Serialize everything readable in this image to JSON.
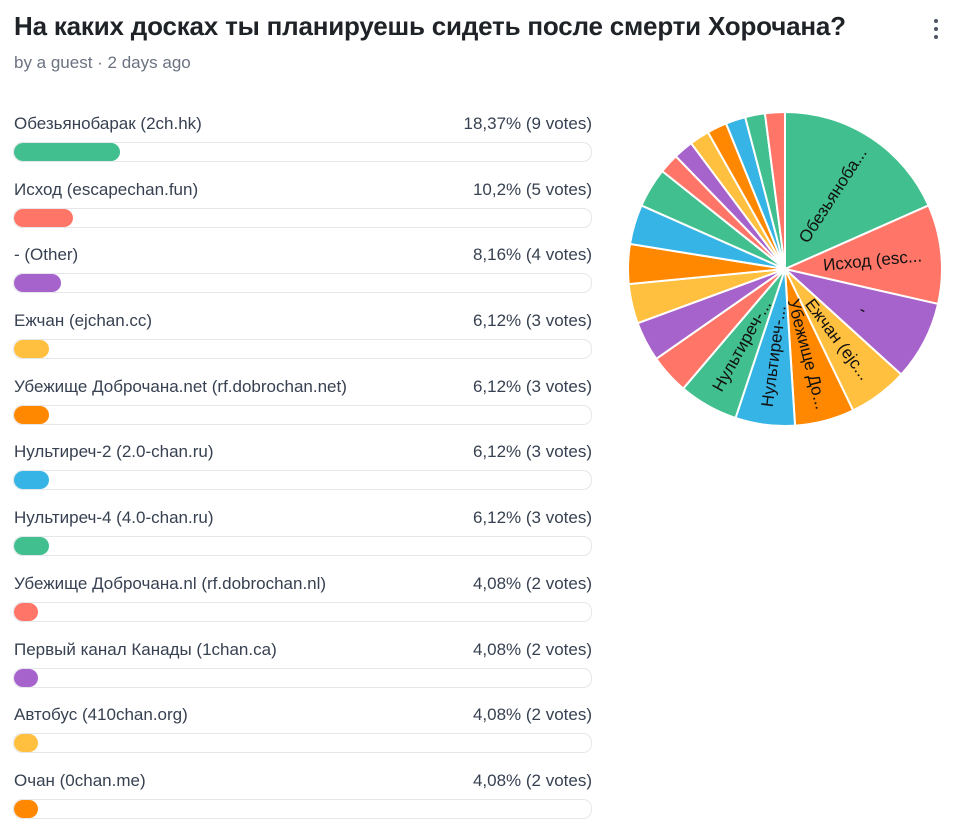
{
  "poll": {
    "title": "На каких досках ты планируешь сидеть после смерти Хорочана?",
    "meta": "by a guest · 2 days ago",
    "more_icon": "more-vertical-icon"
  },
  "colors": [
    "#41BF8E",
    "#FF7567",
    "#A663CC",
    "#FFBF3F",
    "#FF8800",
    "#36B4E5"
  ],
  "chart_data": {
    "type": "pie",
    "title": "На каких досках ты планируешь сидеть после смерти Хорочана?",
    "slices": [
      {
        "label": "Обезьянобарак (2ch.hk)",
        "pct_text": "18,37% (9 votes)",
        "value": 9,
        "percent": 18.37,
        "pie_label": "Обезьяноба..."
      },
      {
        "label": "Исход (escapechan.fun)",
        "pct_text": "10,2% (5 votes)",
        "value": 5,
        "percent": 10.2,
        "pie_label": "Исход (esc..."
      },
      {
        "label": "- (Other)",
        "pct_text": "8,16% (4 votes)",
        "value": 4,
        "percent": 8.16,
        "pie_label": "-"
      },
      {
        "label": "Ежчан (ejchan.cc)",
        "pct_text": "6,12% (3 votes)",
        "value": 3,
        "percent": 6.12,
        "pie_label": "Ежчан (ejc..."
      },
      {
        "label": "Убежище Доброчана.net (rf.dobrochan.net)",
        "pct_text": "6,12% (3 votes)",
        "value": 3,
        "percent": 6.12,
        "pie_label": "Убежище До..."
      },
      {
        "label": "Нультиреч-2 (2.0-chan.ru)",
        "pct_text": "6,12% (3 votes)",
        "value": 3,
        "percent": 6.12,
        "pie_label": "Нультиреч-..."
      },
      {
        "label": "Нультиреч-4 (4.0-chan.ru)",
        "pct_text": "6,12% (3 votes)",
        "value": 3,
        "percent": 6.12,
        "pie_label": "Нультиреч-..."
      },
      {
        "label": "Убежище Доброчана.nl (rf.dobrochan.nl)",
        "pct_text": "4,08% (2 votes)",
        "value": 2,
        "percent": 4.08,
        "pie_label": ""
      },
      {
        "label": "Первый канал Канады (1chan.ca)",
        "pct_text": "4,08% (2 votes)",
        "value": 2,
        "percent": 4.08,
        "pie_label": ""
      },
      {
        "label": "Автобус (410chan.org)",
        "pct_text": "4,08% (2 votes)",
        "value": 2,
        "percent": 4.08,
        "pie_label": ""
      },
      {
        "label": "Очан (0chan.me)",
        "pct_text": "4,08% (2 votes)",
        "value": 2,
        "percent": 4.08,
        "pie_label": ""
      },
      {
        "label": "",
        "pct_text": "",
        "value": 2,
        "percent": 4.08,
        "pie_label": ""
      },
      {
        "label": "",
        "pct_text": "",
        "value": 2,
        "percent": 4.08,
        "pie_label": ""
      },
      {
        "label": "",
        "pct_text": "",
        "value": 1,
        "percent": 2.04,
        "pie_label": ""
      },
      {
        "label": "",
        "pct_text": "",
        "value": 1,
        "percent": 2.04,
        "pie_label": ""
      },
      {
        "label": "",
        "pct_text": "",
        "value": 1,
        "percent": 2.04,
        "pie_label": ""
      },
      {
        "label": "",
        "pct_text": "",
        "value": 1,
        "percent": 2.04,
        "pie_label": ""
      },
      {
        "label": "",
        "pct_text": "",
        "value": 1,
        "percent": 2.04,
        "pie_label": ""
      },
      {
        "label": "",
        "pct_text": "",
        "value": 1,
        "percent": 2.04,
        "pie_label": ""
      },
      {
        "label": "",
        "pct_text": "",
        "value": 1,
        "percent": 2.04,
        "pie_label": ""
      }
    ],
    "visible_option_count": 11,
    "legend": "left-list"
  }
}
